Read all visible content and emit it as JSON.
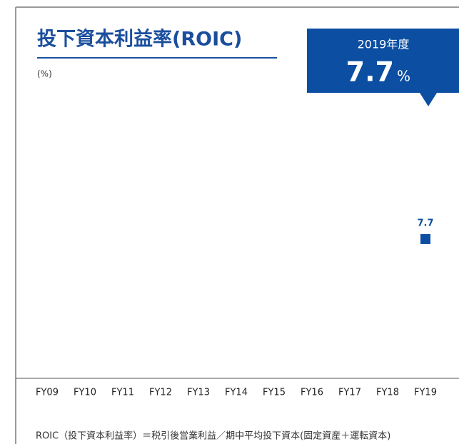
{
  "chart_data": {
    "type": "line",
    "title": "投下資本利益率(ROIC)",
    "unit_label": "(%)",
    "callout": {
      "label": "2019年度",
      "value": 7.7,
      "unit": "%"
    },
    "categories": [
      "FY09",
      "FY10",
      "FY11",
      "FY12",
      "FY13",
      "FY14",
      "FY15",
      "FY16",
      "FY17",
      "FY18",
      "FY19"
    ],
    "values": [
      null,
      null,
      null,
      null,
      null,
      null,
      null,
      null,
      null,
      null,
      7.7
    ],
    "color": "#0b4ea2",
    "ylim": [
      0,
      15
    ],
    "footnote": "ROIC（投下資本利益率）＝税引後営業利益／期中平均投下資本(固定資産＋運転資本)"
  }
}
